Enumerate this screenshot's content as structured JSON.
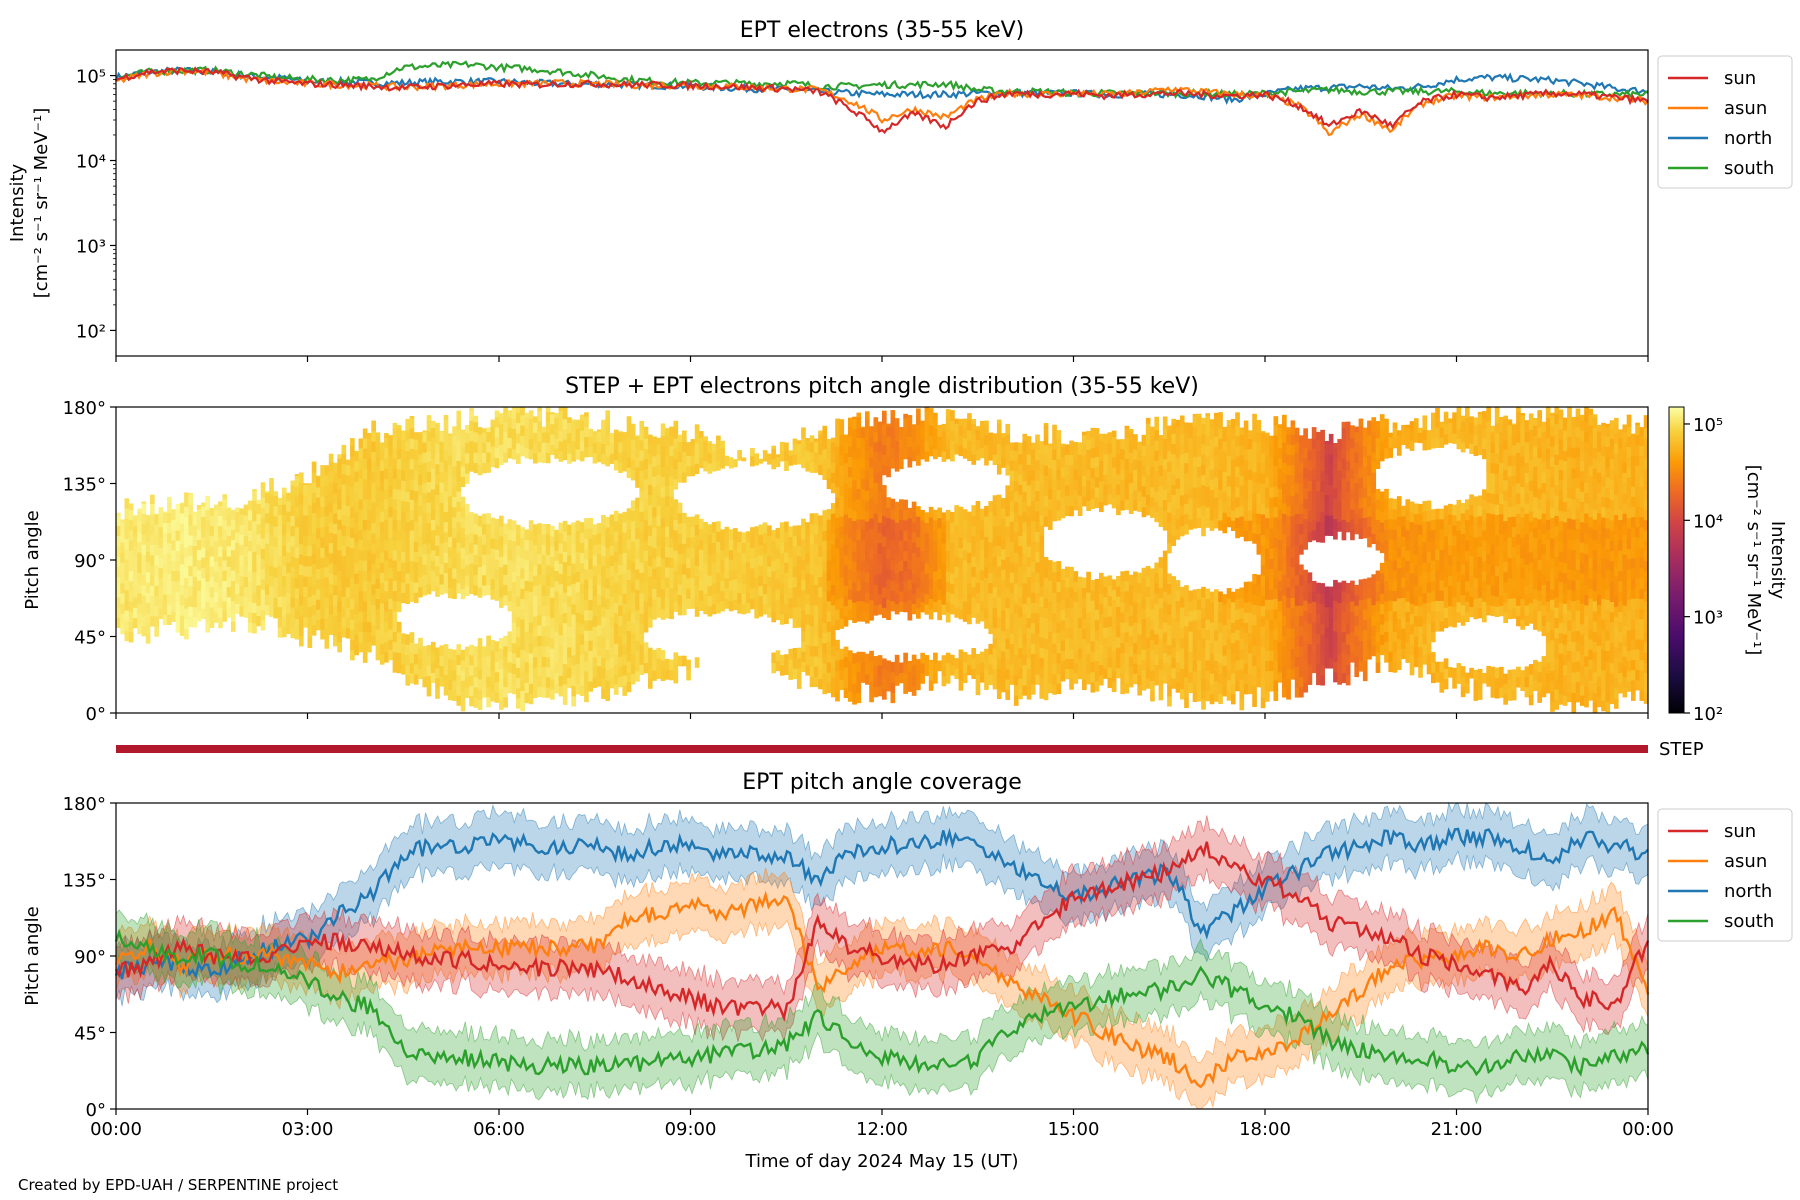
{
  "credit": "Created by EPD-UAH / SERPENTINE project",
  "colors": {
    "sun": "#d62728",
    "asun": "#ff7f0e",
    "north": "#1f77b4",
    "south": "#2ca02c",
    "step_bar": "#b2182b"
  },
  "chart_data": [
    {
      "type": "line",
      "title": "EPT electrons (35-55 keV)",
      "ylabel": "Intensity",
      "ylabel_units": "[cm⁻² s⁻¹ sr⁻¹ MeV⁻¹]",
      "yscale": "log",
      "ylim": [
        50,
        200000
      ],
      "yticks": [
        {
          "value": 100,
          "label": "10²"
        },
        {
          "value": 1000,
          "label": "10³"
        },
        {
          "value": 10000,
          "label": "10⁴"
        },
        {
          "value": 100000,
          "label": "10⁵"
        }
      ],
      "x": [
        0,
        0.5,
        1,
        1.5,
        2,
        2.5,
        3,
        3.5,
        4,
        4.5,
        5,
        5.5,
        6,
        6.5,
        7,
        7.5,
        8,
        8.5,
        9,
        9.5,
        10,
        10.5,
        11,
        11.5,
        12,
        12.5,
        13,
        13.5,
        14,
        14.5,
        15,
        15.5,
        16,
        16.5,
        17,
        17.5,
        18,
        18.5,
        19,
        19.5,
        20,
        20.5,
        21,
        21.5,
        22,
        22.5,
        23,
        23.5,
        24
      ],
      "xlim": [
        0,
        24
      ],
      "legend": "right",
      "series": [
        {
          "name": "sun",
          "values": [
            90000,
            110000,
            115000,
            110000,
            95000,
            85000,
            80000,
            78000,
            75000,
            72000,
            75000,
            78000,
            80000,
            78000,
            80000,
            80000,
            78000,
            78000,
            76000,
            75000,
            72000,
            70000,
            65000,
            40000,
            22000,
            35000,
            25000,
            50000,
            62000,
            60000,
            62000,
            58000,
            60000,
            62000,
            60000,
            58000,
            60000,
            45000,
            25000,
            38000,
            25000,
            50000,
            60000,
            55000,
            58000,
            62000,
            60000,
            55000,
            50000
          ]
        },
        {
          "name": "asun",
          "values": [
            85000,
            105000,
            115000,
            108000,
            92000,
            85000,
            80000,
            78000,
            76000,
            73000,
            75000,
            78000,
            80000,
            80000,
            82000,
            80000,
            78000,
            77000,
            76000,
            75000,
            73000,
            70000,
            68000,
            50000,
            30000,
            40000,
            32000,
            52000,
            62000,
            60000,
            62000,
            60000,
            62000,
            70000,
            65000,
            60000,
            58000,
            45000,
            20000,
            35000,
            22000,
            48000,
            58000,
            55000,
            58000,
            60000,
            58000,
            55000,
            50000
          ]
        },
        {
          "name": "north",
          "values": [
            95000,
            110000,
            115000,
            110000,
            100000,
            95000,
            85000,
            85000,
            82000,
            82000,
            85000,
            85000,
            85000,
            82000,
            80000,
            80000,
            78000,
            76000,
            75000,
            72000,
            70000,
            68000,
            65000,
            62000,
            60000,
            60000,
            60000,
            62000,
            62000,
            62000,
            62000,
            60000,
            60000,
            60000,
            58000,
            52000,
            60000,
            70000,
            72000,
            75000,
            70000,
            75000,
            90000,
            95000,
            92000,
            88000,
            80000,
            70000,
            65000
          ]
        },
        {
          "name": "south",
          "values": [
            95000,
            110000,
            115000,
            115000,
            105000,
            95000,
            90000,
            88000,
            90000,
            125000,
            130000,
            135000,
            125000,
            120000,
            110000,
            100000,
            90000,
            85000,
            82000,
            82000,
            80000,
            82000,
            75000,
            75000,
            78000,
            78000,
            80000,
            68000,
            65000,
            65000,
            62000,
            62000,
            62000,
            62000,
            62000,
            60000,
            62000,
            65000,
            68000,
            65000,
            65000,
            65000,
            65000,
            62000,
            62000,
            62000,
            60000,
            60000,
            60000
          ]
        }
      ]
    },
    {
      "type": "heatmap",
      "title": "STEP + EPT electrons pitch angle distribution (35-55 keV)",
      "ylabel": "Pitch angle",
      "ylim": [
        0,
        180
      ],
      "yticks": [
        "0°",
        "45°",
        "90°",
        "135°",
        "180°"
      ],
      "xlim": [
        0,
        24
      ],
      "colorbar": {
        "label": "Intensity",
        "units": "[cm⁻² s⁻¹ sr⁻¹ MeV⁻¹]",
        "scale": "log",
        "range": [
          100,
          150000
        ],
        "ticks": [
          {
            "value": 100,
            "label": "10²"
          },
          {
            "value": 1000,
            "label": "10³"
          },
          {
            "value": 10000,
            "label": "10⁴"
          },
          {
            "value": 100000,
            "label": "10⁵"
          }
        ],
        "colormap": "inferno"
      },
      "coverage_hour": [
        0,
        1,
        2,
        3,
        4,
        5,
        6,
        7,
        8,
        9,
        10,
        11,
        12,
        13,
        14,
        15,
        16,
        17,
        18,
        19,
        20,
        21,
        22,
        23,
        24
      ],
      "coverage_min_deg": [
        45,
        50,
        55,
        45,
        35,
        10,
        5,
        10,
        15,
        25,
        35,
        15,
        10,
        20,
        10,
        15,
        15,
        5,
        10,
        20,
        30,
        15,
        10,
        5,
        10
      ],
      "coverage_max_deg": [
        120,
        125,
        125,
        140,
        165,
        170,
        175,
        175,
        170,
        165,
        150,
        165,
        175,
        175,
        165,
        165,
        165,
        175,
        170,
        165,
        170,
        175,
        175,
        175,
        170
      ],
      "gaps": [
        {
          "center_hour": 5.3,
          "center_deg": 55,
          "width_h": 1.8,
          "height_deg": 30
        },
        {
          "center_hour": 6.8,
          "center_deg": 130,
          "width_h": 2.8,
          "height_deg": 40
        },
        {
          "center_hour": 9.5,
          "center_deg": 45,
          "width_h": 2.5,
          "height_deg": 30
        },
        {
          "center_hour": 10.0,
          "center_deg": 128,
          "width_h": 2.5,
          "height_deg": 38
        },
        {
          "center_hour": 13.0,
          "center_deg": 135,
          "width_h": 2.0,
          "height_deg": 30
        },
        {
          "center_hour": 12.5,
          "center_deg": 45,
          "width_h": 2.5,
          "height_deg": 25
        },
        {
          "center_hour": 15.5,
          "center_deg": 100,
          "width_h": 2.0,
          "height_deg": 40
        },
        {
          "center_hour": 17.2,
          "center_deg": 90,
          "width_h": 1.5,
          "height_deg": 35
        },
        {
          "center_hour": 19.2,
          "center_deg": 90,
          "width_h": 1.3,
          "height_deg": 28
        },
        {
          "center_hour": 20.6,
          "center_deg": 140,
          "width_h": 1.8,
          "height_deg": 35
        },
        {
          "center_hour": 21.5,
          "center_deg": 40,
          "width_h": 1.8,
          "height_deg": 30
        }
      ],
      "intensity_hour": [
        0,
        1,
        2,
        3,
        4,
        5,
        6,
        7,
        8,
        9,
        10,
        11,
        11.5,
        12,
        12.5,
        13,
        14,
        15,
        16,
        17,
        18,
        18.5,
        19,
        19.5,
        20,
        21,
        22,
        23,
        24
      ],
      "intensity_value": [
        110000,
        120000,
        110000,
        80000,
        75000,
        90000,
        100000,
        95000,
        85000,
        80000,
        75000,
        70000,
        40000,
        25000,
        30000,
        60000,
        62000,
        62000,
        60000,
        62000,
        55000,
        25000,
        8000,
        25000,
        50000,
        60000,
        58000,
        55000,
        55000
      ]
    },
    {
      "type": "line",
      "title": "EPT pitch angle coverage",
      "ylabel": "Pitch angle",
      "ylim": [
        0,
        180
      ],
      "yticks": [
        "0°",
        "45°",
        "90°",
        "135°",
        "180°"
      ],
      "xlabel": "Time of day 2024 May 15 (UT)",
      "xlim": [
        0,
        24
      ],
      "xticks": [
        {
          "value": 0,
          "label": "00:00"
        },
        {
          "value": 3,
          "label": "03:00"
        },
        {
          "value": 6,
          "label": "06:00"
        },
        {
          "value": 9,
          "label": "09:00"
        },
        {
          "value": 12,
          "label": "12:00"
        },
        {
          "value": 15,
          "label": "15:00"
        },
        {
          "value": 18,
          "label": "18:00"
        },
        {
          "value": 21,
          "label": "21:00"
        },
        {
          "value": 24,
          "label": "00:00"
        }
      ],
      "band_halfwidth_deg": 15,
      "legend": "right",
      "x": [
        0,
        0.5,
        1,
        1.5,
        2,
        2.5,
        3,
        3.5,
        4,
        4.5,
        5,
        5.5,
        6,
        6.5,
        7,
        7.5,
        8,
        8.5,
        9,
        9.5,
        10,
        10.5,
        11,
        11.5,
        12,
        12.5,
        13,
        13.5,
        14,
        14.5,
        15,
        15.5,
        16,
        16.5,
        17,
        17.5,
        18,
        18.5,
        19,
        19.5,
        20,
        20.5,
        21,
        21.5,
        22,
        22.5,
        23,
        23.5,
        24
      ],
      "series": [
        {
          "name": "sun",
          "values": [
            80,
            85,
            95,
            90,
            88,
            92,
            100,
            98,
            95,
            92,
            88,
            88,
            85,
            83,
            83,
            82,
            78,
            70,
            65,
            60,
            60,
            58,
            110,
            95,
            90,
            85,
            85,
            90,
            95,
            110,
            125,
            130,
            135,
            140,
            155,
            140,
            135,
            125,
            110,
            105,
            100,
            90,
            85,
            78,
            70,
            85,
            65,
            62,
            100
          ]
        },
        {
          "name": "asun",
          "values": [
            90,
            95,
            85,
            90,
            90,
            90,
            85,
            80,
            85,
            88,
            92,
            95,
            95,
            95,
            95,
            95,
            110,
            115,
            120,
            115,
            120,
            125,
            70,
            85,
            95,
            92,
            95,
            90,
            75,
            65,
            55,
            45,
            35,
            30,
            15,
            30,
            35,
            40,
            55,
            70,
            85,
            88,
            90,
            95,
            90,
            100,
            105,
            115,
            70
          ]
        },
        {
          "name": "north",
          "values": [
            80,
            85,
            85,
            80,
            90,
            95,
            100,
            115,
            125,
            150,
            155,
            155,
            160,
            155,
            155,
            155,
            150,
            155,
            155,
            150,
            150,
            150,
            135,
            150,
            155,
            155,
            160,
            155,
            145,
            135,
            125,
            130,
            135,
            140,
            105,
            115,
            130,
            140,
            150,
            155,
            160,
            155,
            160,
            160,
            155,
            145,
            160,
            155,
            150
          ]
        },
        {
          "name": "south",
          "values": [
            100,
            95,
            90,
            90,
            85,
            85,
            75,
            65,
            60,
            35,
            30,
            30,
            28,
            25,
            25,
            25,
            25,
            28,
            30,
            32,
            35,
            38,
            55,
            40,
            30,
            28,
            25,
            30,
            45,
            55,
            60,
            65,
            68,
            70,
            80,
            70,
            60,
            55,
            40,
            35,
            30,
            30,
            25,
            25,
            30,
            30,
            25,
            30,
            35
          ]
        }
      ]
    }
  ],
  "step_bar": {
    "label": "STEP",
    "xlim": [
      0,
      24
    ]
  }
}
